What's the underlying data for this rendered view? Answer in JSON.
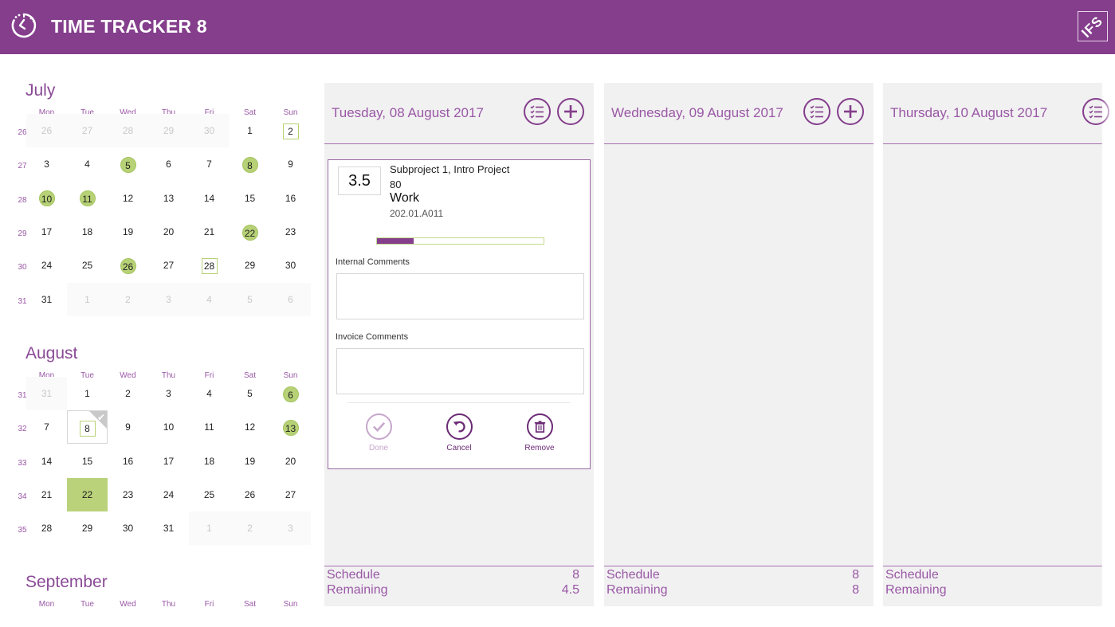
{
  "app": {
    "title": "TIME TRACKER 8",
    "logo_text": "IFS",
    "colors": {
      "brand": "#843e8c",
      "accent_green": "#b7d276",
      "text_purple": "#9a58a6"
    }
  },
  "calendar": {
    "dow": [
      "Mon",
      "Tue",
      "Wed",
      "Thu",
      "Fri",
      "Sat",
      "Sun"
    ],
    "months": [
      {
        "name": "July",
        "weeks": [
          {
            "wk": "26",
            "days": [
              {
                "d": "26",
                "o": true
              },
              {
                "d": "27",
                "o": true
              },
              {
                "d": "28",
                "o": true
              },
              {
                "d": "29",
                "o": true
              },
              {
                "d": "30",
                "o": true
              },
              {
                "d": "1"
              },
              {
                "d": "2",
                "box": true
              }
            ]
          },
          {
            "wk": "27",
            "days": [
              {
                "d": "3"
              },
              {
                "d": "4"
              },
              {
                "d": "5",
                "mark": true
              },
              {
                "d": "6"
              },
              {
                "d": "7"
              },
              {
                "d": "8",
                "mark": true
              },
              {
                "d": "9"
              }
            ]
          },
          {
            "wk": "28",
            "days": [
              {
                "d": "10",
                "mark": true
              },
              {
                "d": "11",
                "mark": true
              },
              {
                "d": "12"
              },
              {
                "d": "13"
              },
              {
                "d": "14"
              },
              {
                "d": "15"
              },
              {
                "d": "16"
              }
            ]
          },
          {
            "wk": "29",
            "days": [
              {
                "d": "17"
              },
              {
                "d": "18"
              },
              {
                "d": "19"
              },
              {
                "d": "20"
              },
              {
                "d": "21"
              },
              {
                "d": "22",
                "mark": true
              },
              {
                "d": "23"
              }
            ]
          },
          {
            "wk": "30",
            "days": [
              {
                "d": "24"
              },
              {
                "d": "25"
              },
              {
                "d": "26",
                "mark": true
              },
              {
                "d": "27"
              },
              {
                "d": "28",
                "box": true
              },
              {
                "d": "29"
              },
              {
                "d": "30"
              }
            ]
          },
          {
            "wk": "31",
            "days": [
              {
                "d": "31"
              },
              {
                "d": "1",
                "o": true
              },
              {
                "d": "2",
                "o": true
              },
              {
                "d": "3",
                "o": true
              },
              {
                "d": "4",
                "o": true
              },
              {
                "d": "5",
                "o": true
              },
              {
                "d": "6",
                "o": true
              }
            ]
          }
        ]
      },
      {
        "name": "August",
        "weeks": [
          {
            "wk": "31",
            "days": [
              {
                "d": "31",
                "o": true
              },
              {
                "d": "1"
              },
              {
                "d": "2"
              },
              {
                "d": "3"
              },
              {
                "d": "4"
              },
              {
                "d": "5"
              },
              {
                "d": "6",
                "mark": true
              }
            ]
          },
          {
            "wk": "32",
            "days": [
              {
                "d": "7"
              },
              {
                "d": "8",
                "box": true,
                "sel": true
              },
              {
                "d": "9"
              },
              {
                "d": "10"
              },
              {
                "d": "11"
              },
              {
                "d": "12"
              },
              {
                "d": "13",
                "mark": true
              }
            ]
          },
          {
            "wk": "33",
            "days": [
              {
                "d": "14"
              },
              {
                "d": "15"
              },
              {
                "d": "16"
              },
              {
                "d": "17"
              },
              {
                "d": "18"
              },
              {
                "d": "19"
              },
              {
                "d": "20"
              }
            ]
          },
          {
            "wk": "34",
            "days": [
              {
                "d": "21"
              },
              {
                "d": "22",
                "fill": true
              },
              {
                "d": "23"
              },
              {
                "d": "24"
              },
              {
                "d": "25"
              },
              {
                "d": "26"
              },
              {
                "d": "27"
              }
            ]
          },
          {
            "wk": "35",
            "days": [
              {
                "d": "28"
              },
              {
                "d": "29"
              },
              {
                "d": "30"
              },
              {
                "d": "31"
              },
              {
                "d": "1",
                "o": true
              },
              {
                "d": "2",
                "o": true
              },
              {
                "d": "3",
                "o": true
              }
            ]
          }
        ]
      },
      {
        "name": "September",
        "weeks": []
      }
    ]
  },
  "days": [
    {
      "title": "Tuesday, 08 August 2017",
      "schedule_label": "Schedule",
      "schedule_value": "8",
      "remaining_label": "Remaining",
      "remaining_value": "4.5",
      "entry": {
        "hours": "3.5",
        "project": "Subproject 1, Intro Project",
        "number": "80",
        "activity": "Work",
        "code": "202.01.A011",
        "progress_percent": 22,
        "internal_comments_label": "Internal Comments",
        "internal_comments_value": "",
        "invoice_comments_label": "Invoice Comments",
        "invoice_comments_value": "",
        "done_label": "Done",
        "cancel_label": "Cancel",
        "remove_label": "Remove"
      }
    },
    {
      "title": "Wednesday, 09 August 2017",
      "schedule_label": "Schedule",
      "schedule_value": "8",
      "remaining_label": "Remaining",
      "remaining_value": "8"
    },
    {
      "title": "Thursday, 10 August 2017",
      "schedule_label": "Schedule",
      "schedule_value": "",
      "remaining_label": "Remaining",
      "remaining_value": ""
    }
  ],
  "icons": {
    "app": "clock-icon",
    "logo": "ifs-logo",
    "list": "checklist-icon",
    "add": "plus-icon",
    "done": "check-icon",
    "cancel": "undo-icon",
    "remove": "trash-icon"
  }
}
